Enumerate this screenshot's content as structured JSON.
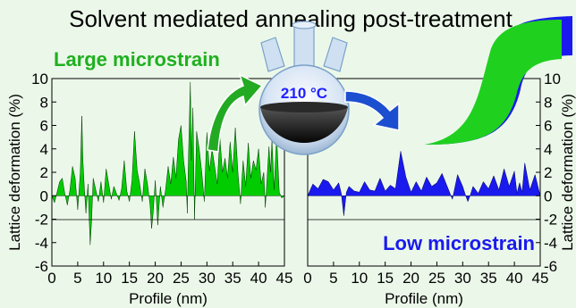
{
  "figure": {
    "title": "Solvent mediated annealing post-treatment",
    "left_callout": "Large microstrain",
    "right_callout": "Low microstrain",
    "flask_label": "210 °C",
    "colors": {
      "green": "#00cc00",
      "blue": "#1a1aee",
      "flask_text": "#2020ff",
      "arrow_green": "#22aa22",
      "arrow_blue": "#1c4fcf",
      "background": "#ebf8e9"
    }
  },
  "chart_data": [
    {
      "type": "area",
      "series": [
        {
          "color": "#00cc00",
          "x": [
            0,
            0.5,
            1,
            1.5,
            2,
            2.5,
            3,
            3.5,
            4,
            4.5,
            5,
            5.5,
            5.8,
            6,
            6.3,
            6.6,
            7,
            7.4,
            7.7,
            8,
            8.5,
            9,
            9.5,
            10,
            10.5,
            11,
            11.5,
            12,
            12.5,
            13,
            13.5,
            14,
            14.5,
            15,
            15.5,
            16,
            16.5,
            17,
            17.5,
            18,
            18.5,
            19,
            19.3,
            19.6,
            20,
            20.5,
            21,
            21.5,
            22,
            22.5,
            23,
            23.5,
            24,
            24.5,
            25,
            25.5,
            26,
            26.2,
            26.5,
            26.8,
            27,
            27.3,
            27.6,
            28,
            28.5,
            29,
            29.5,
            30,
            30.5,
            31,
            31.5,
            32,
            32.5,
            33,
            33.5,
            34,
            34.5,
            35,
            35.5,
            36,
            36.5,
            37,
            37.5,
            38,
            38.5,
            39,
            39.5,
            40,
            40.5,
            41,
            41.3,
            41.6,
            42,
            42.3,
            42.6,
            43,
            43.5,
            44,
            44.5,
            45
          ],
          "y": [
            0,
            -0.6,
            0.3,
            1.2,
            1.5,
            0.2,
            -0.8,
            0.5,
            2.5,
            1.5,
            -1.2,
            2,
            6.8,
            3,
            0.5,
            -1.5,
            1,
            -4.2,
            -2,
            1.5,
            0.5,
            -0.5,
            1.2,
            -0.6,
            2.3,
            1,
            -0.3,
            0.8,
            0.2,
            -0.4,
            0.6,
            3,
            0.4,
            -0.5,
            1.3,
            5.5,
            2.2,
            1,
            -0.5,
            2.3,
            1,
            -0.8,
            -2.8,
            -1.5,
            1.3,
            -2.5,
            0.8,
            -1,
            0.5,
            2.5,
            1,
            3.3,
            1.5,
            4.8,
            6,
            3,
            1.2,
            -1.5,
            4.5,
            9.7,
            3,
            7.5,
            -2,
            5.5,
            4,
            2,
            -0.5,
            5.4,
            2.1,
            4,
            2.5,
            1,
            5,
            2,
            3.2,
            1.5,
            4.6,
            2,
            5.8,
            2,
            -0.7,
            3,
            0.8,
            4.5,
            1.5,
            3,
            2.2,
            4,
            1,
            2,
            -1,
            1.2,
            4.2,
            2,
            4.8,
            0.5,
            5.1,
            0.3,
            -0.2,
            0
          ]
        }
      ],
      "xlabel": "Profile (nm)",
      "ylabel": "Lattice deformation (%)",
      "xlim": [
        0,
        45
      ],
      "ylim": [
        -6,
        10
      ],
      "xticks": [
        "0",
        "5",
        "10",
        "15",
        "20",
        "25",
        "30",
        "35",
        "40",
        "45"
      ],
      "yticks": [
        "10",
        "8",
        "6",
        "4",
        "2",
        "0",
        "-2",
        "-4",
        "-6"
      ]
    },
    {
      "type": "area",
      "series": [
        {
          "color": "#1a1aee",
          "x": [
            0,
            1,
            2,
            3,
            4,
            5,
            6,
            6.5,
            7,
            7.5,
            8,
            9,
            10,
            11,
            12,
            13,
            14,
            15,
            16,
            17,
            18,
            19,
            20,
            21,
            22,
            23,
            24,
            25,
            26,
            27,
            28,
            29,
            30,
            30.5,
            31,
            31.5,
            32,
            33,
            34,
            35,
            36,
            37,
            38,
            39,
            40,
            40.5,
            41,
            41.5,
            42,
            43,
            44,
            45
          ],
          "y": [
            0,
            1,
            0.6,
            1.4,
            1.2,
            0.5,
            1.1,
            0.2,
            -1.7,
            0.3,
            0.8,
            0.4,
            0.3,
            1.2,
            0.5,
            0.4,
            1.5,
            0.4,
            0.9,
            0.6,
            3.8,
            1.6,
            0.3,
            1.2,
            0.4,
            1.6,
            0.8,
            1.1,
            1.9,
            0.8,
            -0.3,
            1.8,
            0.8,
            0.1,
            -0.5,
            0.1,
            0.8,
            0.2,
            1.2,
            0.6,
            1.7,
            0.5,
            2.3,
            0.8,
            2.1,
            0.2,
            1.1,
            0.3,
            2.8,
            0.5,
            1.8,
            0
          ]
        }
      ],
      "xlabel": "Profile (nm)",
      "ylabel": "Lattice deformation (%)",
      "xlim": [
        0,
        45
      ],
      "ylim": [
        -6,
        10
      ],
      "xticks": [
        "0",
        "5",
        "10",
        "15",
        "20",
        "25",
        "30",
        "35",
        "40",
        "45"
      ],
      "yticks": [
        "10",
        "8",
        "6",
        "4",
        "2",
        "0",
        "-2",
        "-4",
        "-6"
      ]
    }
  ]
}
